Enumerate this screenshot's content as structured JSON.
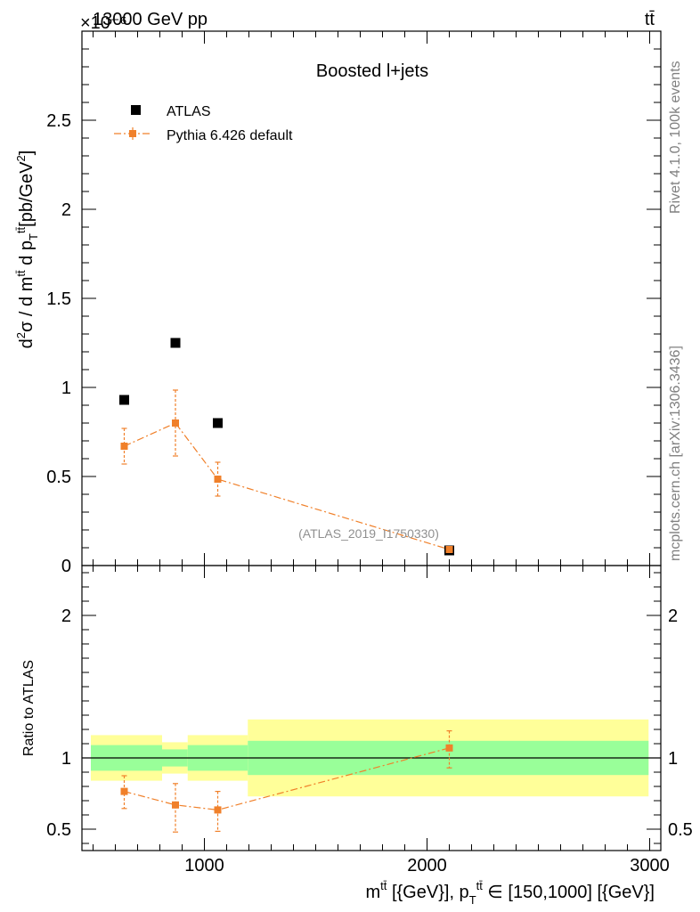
{
  "header": {
    "energy_label": "13000 GeV pp",
    "process_label": "tt̄",
    "exponent_label": "×10⁻⁶"
  },
  "side": {
    "rivet_label": "Rivet 4.1.0,  100k events",
    "mcplots_label": "mcplots.cern.ch [arXiv:1306.3436]"
  },
  "colors": {
    "pythia": "#f0802a",
    "band_inner": "#99ff99",
    "band_outer": "#ffff99",
    "atlas": "#000000",
    "watermark": "#909090"
  },
  "chart_data": [
    {
      "type": "scatter",
      "title": "Boosted l+jets",
      "ylabel": "d²σ / d m^tt̄ d p_T^tt̄ [pb/GeV²]",
      "y_scale": "×10⁻⁶",
      "xlim": [
        450,
        3050
      ],
      "ylim": [
        0,
        3.0
      ],
      "yticks": [
        0,
        0.5,
        1,
        1.5,
        2,
        2.5
      ],
      "ytick_labels": [
        "0",
        "0.5",
        "1",
        "1.5",
        "2",
        "2.5"
      ],
      "watermark": "(ATLAS_2019_I1750330)",
      "legend": {
        "position": "top-left",
        "entries": [
          "ATLAS",
          "Pythia 6.426 default"
        ]
      },
      "series": [
        {
          "name": "ATLAS",
          "marker": "square",
          "x": [
            640,
            870,
            1060,
            2100
          ],
          "y": [
            0.93,
            1.25,
            0.8,
            0.085
          ]
        },
        {
          "name": "Pythia 6.426 default",
          "marker": "square",
          "line": "dash-dot",
          "x": [
            640,
            870,
            1060,
            2100
          ],
          "y": [
            0.67,
            0.8,
            0.485,
            0.09
          ],
          "yerr": [
            0.1,
            0.185,
            0.095,
            0.01
          ]
        }
      ]
    },
    {
      "type": "line",
      "title": "",
      "ylabel": "Ratio to ATLAS",
      "xlabel": "m^tt̄ [{GeV}], p_T^tt̄ ∈ [150,1000] [{GeV}]",
      "xlim": [
        450,
        3050
      ],
      "ylim": [
        0.35,
        2.35
      ],
      "xticks": [
        1000,
        2000,
        3000
      ],
      "xtick_labels": [
        "1000",
        "2000",
        "3000"
      ],
      "yticks": [
        0.5,
        1,
        2
      ],
      "ytick_labels": [
        "0.5",
        "1",
        "2"
      ],
      "bands": [
        {
          "xlo": 490,
          "xhi": 810,
          "lo_inner": 0.91,
          "hi_inner": 1.09,
          "lo_outer": 0.84,
          "hi_outer": 1.16
        },
        {
          "xlo": 810,
          "xhi": 925,
          "lo_inner": 0.94,
          "hi_inner": 1.06,
          "lo_outer": 0.89,
          "hi_outer": 1.11
        },
        {
          "xlo": 925,
          "xhi": 1195,
          "lo_inner": 0.91,
          "hi_inner": 1.09,
          "lo_outer": 0.84,
          "hi_outer": 1.16
        },
        {
          "xlo": 1195,
          "xhi": 2995,
          "lo_inner": 0.88,
          "hi_inner": 1.12,
          "lo_outer": 0.73,
          "hi_outer": 1.27
        }
      ],
      "series": [
        {
          "name": "Pythia 6.426 default",
          "x": [
            640,
            870,
            1060,
            2100
          ],
          "y": [
            0.765,
            0.67,
            0.635,
            1.07
          ],
          "yerr_lo": [
            0.12,
            0.19,
            0.15,
            0.14
          ],
          "yerr_hi": [
            0.11,
            0.15,
            0.13,
            0.12
          ]
        }
      ]
    }
  ]
}
